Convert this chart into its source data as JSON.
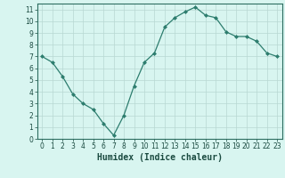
{
  "x": [
    0,
    1,
    2,
    3,
    4,
    5,
    6,
    7,
    8,
    9,
    10,
    11,
    12,
    13,
    14,
    15,
    16,
    17,
    18,
    19,
    20,
    21,
    22,
    23
  ],
  "y": [
    7.0,
    6.5,
    5.3,
    3.8,
    3.0,
    2.5,
    1.3,
    0.3,
    2.0,
    4.5,
    6.5,
    7.3,
    9.5,
    10.3,
    10.8,
    11.2,
    10.5,
    10.3,
    9.1,
    8.7,
    8.7,
    8.3,
    7.3,
    7.0
  ],
  "line_color": "#2d7d6e",
  "marker": "D",
  "marker_size": 2.0,
  "bg_color": "#d8f5f0",
  "grid_color": "#b8d8d2",
  "xlabel": "Humidex (Indice chaleur)",
  "xlim": [
    -0.5,
    23.5
  ],
  "ylim": [
    0,
    11.5
  ],
  "xticks": [
    0,
    1,
    2,
    3,
    4,
    5,
    6,
    7,
    8,
    9,
    10,
    11,
    12,
    13,
    14,
    15,
    16,
    17,
    18,
    19,
    20,
    21,
    22,
    23
  ],
  "yticks": [
    0,
    1,
    2,
    3,
    4,
    5,
    6,
    7,
    8,
    9,
    10,
    11
  ],
  "tick_fontsize": 5.5,
  "xlabel_fontsize": 7.0,
  "axis_color": "#2d6e60",
  "label_color": "#1a4a40",
  "linewidth": 0.9
}
